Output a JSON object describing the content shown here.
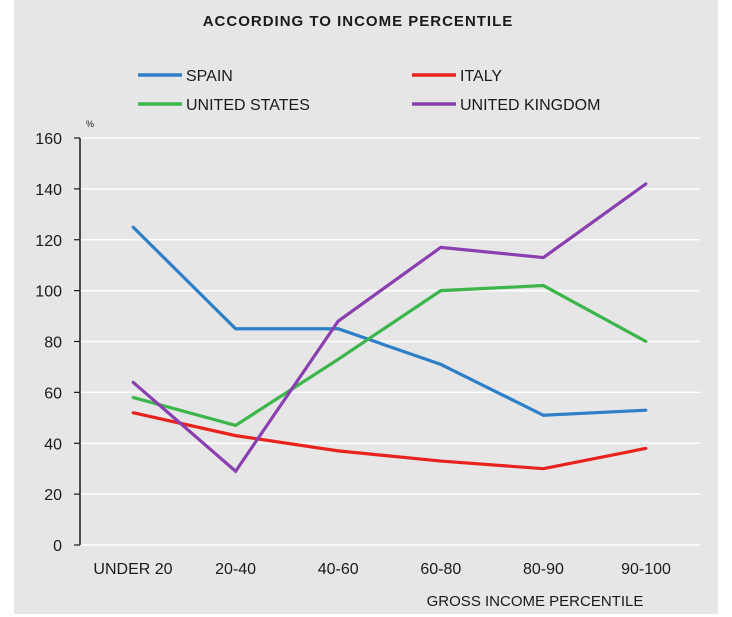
{
  "chart_data": {
    "type": "line",
    "title": "ACCORDING TO INCOME PERCENTILE",
    "xlabel": "GROSS INCOME PERCENTILE",
    "ylabel": "%",
    "categories": [
      "UNDER 20",
      "20-40",
      "40-60",
      "60-80",
      "80-90",
      "90-100"
    ],
    "ylim": [
      0,
      160
    ],
    "yticks": [
      0,
      20,
      40,
      60,
      80,
      100,
      120,
      140,
      160
    ],
    "grid": true,
    "legend_position": "top",
    "series": [
      {
        "name": "SPAIN",
        "color": "#2f7fc8",
        "values": [
          125,
          85,
          85,
          71,
          51,
          53
        ]
      },
      {
        "name": "ITALY",
        "color": "#e8221c",
        "values": [
          52,
          43,
          37,
          33,
          30,
          38
        ]
      },
      {
        "name": "UNITED STATES",
        "color": "#3cb54a",
        "values": [
          58,
          47,
          73,
          100,
          102,
          80
        ]
      },
      {
        "name": "UNITED KINGDOM",
        "color": "#8a3fb0",
        "values": [
          64,
          29,
          88,
          117,
          113,
          142
        ]
      }
    ]
  }
}
